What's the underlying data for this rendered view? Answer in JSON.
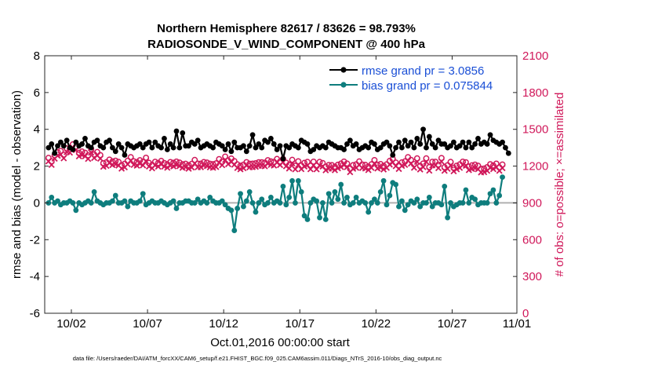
{
  "chart_data": {
    "type": "line",
    "title_line1": "Northern Hemisphere 82617 / 83626 = 98.793%",
    "title_line2": "RADIOSONDE_V_WIND_COMPONENT @ 400 hPa",
    "xlabel": "Oct.01,2016 00:00:00 start",
    "ylabel_left": "rmse and bias (model - observation)",
    "ylabel_right": "# of obs: o=possible; ×=assimilated",
    "footnote": "data file: /Users/raeder/DAI/ATM_forcXX/CAM6_setup/f.e21.FHIST_BGC.f09_025.CAM6assim.011/Diags_NTrS_2016-10/obs_diag_output.nc",
    "xlim": [
      0.25,
      31.25
    ],
    "ylim_left": [
      -6,
      8
    ],
    "ylim_right": [
      0,
      2100
    ],
    "x_ticks": [
      2,
      7,
      12,
      17,
      22,
      27,
      32
    ],
    "x_tick_labels": [
      "10/02",
      "10/07",
      "10/12",
      "10/17",
      "10/22",
      "10/27",
      "11/01"
    ],
    "y_ticks_left": [
      "-6",
      "-4",
      "-2",
      "0",
      "2",
      "4",
      "6",
      "8"
    ],
    "y_ticks_right": [
      "0",
      "300",
      "600",
      "900",
      "1200",
      "1500",
      "1800",
      "2100"
    ],
    "legend": [
      {
        "label": "rmse grand pr = 3.0856",
        "color": "#000000"
      },
      {
        "label": "bias grand pr = 0.075844",
        "color": "#0e7d7d"
      }
    ],
    "colors": {
      "rmse": "#000000",
      "bias": "#0e7d7d",
      "obs": "#d0185a",
      "legend_text": "#1a4fd6",
      "zero": "#b0b0b0"
    },
    "series": [
      {
        "name": "rmse",
        "values": [
          3.0,
          3.2,
          2.7,
          3.1,
          3.3,
          3.1,
          3.4,
          3.0,
          2.9,
          3.3,
          3.1,
          3.2,
          3.5,
          3.1,
          3.0,
          3.3,
          3.4,
          3.1,
          3.0,
          3.3,
          3.4,
          3.0,
          2.8,
          3.2,
          3.0,
          2.6,
          3.2,
          3.1,
          3.0,
          3.1,
          3.2,
          3.0,
          3.2,
          3.3,
          3.0,
          3.3,
          3.1,
          3.0,
          3.5,
          2.9,
          3.2,
          3.0,
          3.9,
          3.0,
          3.8,
          3.1,
          3.1,
          3.3,
          3.2,
          3.4,
          3.0,
          3.1,
          3.2,
          3.1,
          3.0,
          3.3,
          3.2,
          3.1,
          2.9,
          3.2,
          2.8,
          3.3,
          3.0,
          3.0,
          3.1,
          2.8,
          3.1,
          3.7,
          3.0,
          3.2,
          3.0,
          3.4,
          3.3,
          3.5,
          3.2,
          2.9,
          3.1,
          2.4,
          3.1,
          3.0,
          3.2,
          3.1,
          3.0,
          3.4,
          3.3,
          3.2,
          2.8,
          2.9,
          3.1,
          3.0,
          3.1,
          3.0,
          3.3,
          3.2,
          3.1,
          3.0,
          3.0,
          2.9,
          3.2,
          3.4,
          3.1,
          3.2,
          2.9,
          3.0,
          3.1,
          3.0,
          3.3,
          3.2,
          2.9,
          3.0,
          3.2,
          3.3,
          3.1,
          2.6,
          3.0,
          3.3,
          3.0,
          3.4,
          3.1,
          3.3,
          3.0,
          3.5,
          3.2,
          4.0,
          3.0,
          3.6,
          3.2,
          3.0,
          3.4,
          3.2,
          3.2,
          3.0,
          3.1,
          3.3,
          3.0,
          3.1,
          3.3,
          3.0,
          3.3,
          3.0,
          3.2,
          3.5,
          3.2,
          3.3,
          3.2,
          3.7,
          3.4,
          3.3,
          3.2,
          3.3,
          3.0,
          2.7
        ]
      },
      {
        "name": "bias",
        "values": [
          0.0,
          0.3,
          0.0,
          0.1,
          -0.1,
          0.0,
          0.0,
          0.1,
          0.0,
          -0.4,
          0.0,
          -0.1,
          0.0,
          0.1,
          0.0,
          0.6,
          0.1,
          0.0,
          -0.1,
          0.0,
          0.0,
          0.1,
          0.4,
          0.0,
          0.0,
          0.1,
          -0.2,
          0.1,
          0.0,
          0.0,
          0.1,
          0.5,
          -0.1,
          0.0,
          0.1,
          0.0,
          0.0,
          0.1,
          0.0,
          -0.1,
          0.0,
          0.1,
          -0.3,
          0.0,
          0.0,
          0.1,
          0.1,
          0.0,
          0.0,
          0.2,
          0.0,
          0.1,
          0.0,
          0.3,
          0.1,
          0.0,
          0.0,
          0.1,
          -0.1,
          -0.3,
          -0.4,
          -1.5,
          -0.3,
          0.5,
          -0.2,
          0.1,
          0.6,
          0.0,
          -0.5,
          0.0,
          0.2,
          -0.1,
          0.0,
          0.3,
          0.0,
          0.1,
          0.0,
          0.9,
          -0.1,
          0.3,
          1.2,
          0.0,
          1.2,
          0.6,
          -0.7,
          -0.9,
          0.0,
          0.2,
          0.1,
          -0.8,
          0.0,
          -0.9,
          0.5,
          0.0,
          0.6,
          0.2,
          1.0,
          0.0,
          0.3,
          -0.1,
          0.0,
          0.3,
          0.0,
          0.1,
          0.0,
          -0.5,
          0.0,
          0.2,
          0.0,
          0.6,
          1.2,
          -0.1,
          0.4,
          1.1,
          1.0,
          -0.2,
          0.1,
          -0.4,
          -0.1,
          0.1,
          0.0,
          0.2,
          -0.2,
          0.0,
          0.0,
          0.3,
          -0.2,
          0.0,
          0.0,
          -0.1,
          0.9,
          -0.8,
          0.0,
          -0.2,
          -0.1,
          0.0,
          0.0,
          0.7,
          0.0,
          0.3,
          0.2,
          -0.1,
          0.0,
          0.0,
          0.0,
          0.5,
          0.7,
          0.0,
          0.4,
          1.4
        ]
      }
    ],
    "obs_possible": [
      1267,
      1239,
      1288,
      1313,
      1323,
      1293,
      1344,
      1338,
      1378,
      1359,
      1309,
      1319,
      1309,
      1288,
      1338,
      1295,
      1315,
      1290,
      1224,
      1231,
      1253,
      1238,
      1244,
      1234,
      1208,
      1219,
      1244,
      1273,
      1239,
      1233,
      1248,
      1234,
      1268,
      1226,
      1210,
      1235,
      1225,
      1242,
      1225,
      1215,
      1233,
      1227,
      1237,
      1229,
      1215,
      1219,
      1208,
      1218,
      1250,
      1220,
      1220,
      1233,
      1229,
      1219,
      1216,
      1222,
      1257,
      1236,
      1278,
      1244,
      1262,
      1241,
      1214,
      1203,
      1211,
      1232,
      1219,
      1220,
      1223,
      1231,
      1231,
      1228,
      1248,
      1238,
      1234,
      1258,
      1237,
      1259,
      1228,
      1210,
      1251,
      1203,
      1239,
      1205,
      1226,
      1234,
      1203,
      1236,
      1203,
      1234,
      1225,
      1195,
      1209,
      1208,
      1195,
      1211,
      1221,
      1237,
      1221,
      1180,
      1208,
      1214,
      1238,
      1213,
      1210,
      1197,
      1214,
      1249,
      1210,
      1217,
      1202,
      1214,
      1242,
      1259,
      1229,
      1206,
      1230,
      1238,
      1273,
      1250,
      1216,
      1263,
      1202,
      1221,
      1263,
      1192,
      1235,
      1235,
      1212,
      1266,
      1191,
      1207,
      1234,
      1187,
      1203,
      1214,
      1236,
      1231,
      1196,
      1206,
      1212,
      1203,
      1178,
      1180,
      1191,
      1215,
      1205,
      1220,
      1190,
      1213
    ],
    "obs_assimilated": [
      1239,
      1210,
      1261,
      1285,
      1294,
      1264,
      1315,
      1310,
      1350,
      1331,
      1280,
      1290,
      1280,
      1259,
      1310,
      1266,
      1286,
      1261,
      1195,
      1202,
      1225,
      1209,
      1215,
      1205,
      1180,
      1190,
      1215,
      1245,
      1210,
      1204,
      1220,
      1206,
      1240,
      1197,
      1182,
      1206,
      1196,
      1214,
      1196,
      1187,
      1204,
      1198,
      1209,
      1200,
      1186,
      1191,
      1179,
      1189,
      1222,
      1191,
      1191,
      1205,
      1201,
      1190,
      1187,
      1193,
      1229,
      1208,
      1250,
      1216,
      1234,
      1212,
      1185,
      1174,
      1183,
      1204,
      1190,
      1192,
      1194,
      1203,
      1203,
      1199,
      1220,
      1210,
      1205,
      1229,
      1209,
      1231,
      1199,
      1181,
      1223,
      1174,
      1211,
      1176,
      1197,
      1206,
      1175,
      1207,
      1174,
      1205,
      1197,
      1166,
      1180,
      1180,
      1167,
      1182,
      1192,
      1209,
      1192,
      1151,
      1179,
      1186,
      1209,
      1185,
      1181,
      1168,
      1186,
      1221,
      1181,
      1188,
      1173,
      1186,
      1213,
      1231,
      1200,
      1177,
      1202,
      1210,
      1244,
      1221,
      1187,
      1235,
      1173,
      1192,
      1235,
      1163,
      1206,
      1206,
      1184,
      1237,
      1162,
      1178,
      1205,
      1158,
      1174,
      1186,
      1208,
      1203,
      1168,
      1177,
      1183,
      1175,
      1149,
      1151,
      1162,
      1186,
      1176,
      1191,
      1162,
      1184
    ]
  }
}
